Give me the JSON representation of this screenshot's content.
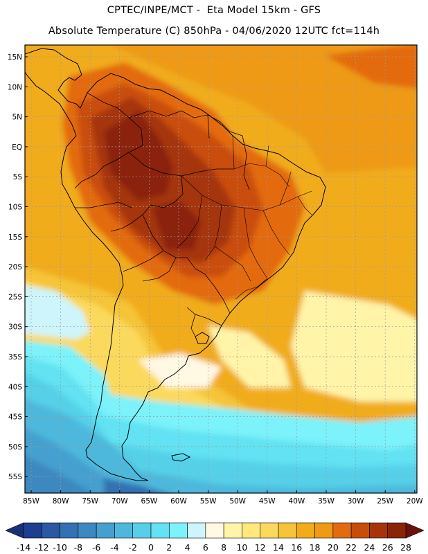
{
  "header": {
    "line1": "CPTEC/INPE/MCT -  Eta Model 15km - GFS",
    "line2": "Absolute Temperature (C) 850hPa - 04/06/2020 12UTC fct=114h"
  },
  "axes": {
    "lat_ticks": [
      "15N",
      "10N",
      "5N",
      "EQ",
      "5S",
      "10S",
      "15S",
      "20S",
      "25S",
      "30S",
      "35S",
      "40S",
      "45S",
      "50S",
      "55S"
    ],
    "lon_ticks": [
      "85W",
      "80W",
      "75W",
      "70W",
      "65W",
      "60W",
      "55W",
      "50W",
      "45W",
      "40W",
      "35W",
      "30W",
      "25W",
      "20W"
    ]
  },
  "colorbar": {
    "labels": [
      "-14",
      "-12",
      "-10",
      "-8",
      "-6",
      "-4",
      "-2",
      "0",
      "2",
      "4",
      "6",
      "8",
      "10",
      "12",
      "14",
      "16",
      "18",
      "20",
      "22",
      "24",
      "26",
      "28"
    ],
    "low_color": "#16307a",
    "high_color": "#6a1010",
    "colors": [
      "#1e3f8f",
      "#2a58a3",
      "#3371b2",
      "#3c88c0",
      "#45a0cf",
      "#4db8dc",
      "#55d0e8",
      "#62e2f2",
      "#7cf2fa",
      "#cdf5fb",
      "#fff8e2",
      "#fff4a8",
      "#ffe97c",
      "#fbd95c",
      "#f5c438",
      "#f1ac1a",
      "#ee9a14",
      "#e36b0f",
      "#c94d0a",
      "#a53508",
      "#8a2407"
    ]
  },
  "map": {
    "land_outline_color": "#000000",
    "grid_color": "#9c9c9c"
  }
}
